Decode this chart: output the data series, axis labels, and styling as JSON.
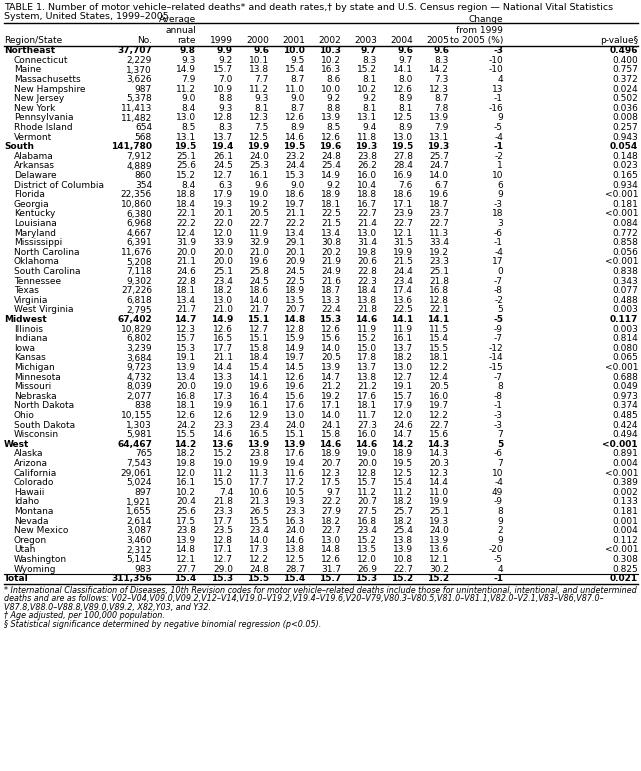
{
  "title_line1": "TABLE 1. Number of motor vehicle–related deaths* and death rates,† by state and U.S. Census region — National Vital Statistics",
  "title_line2": "System, United States, 1999–2005",
  "footnote1": "* International Classification of Diseases, 10th Revision codes for motor vehicle–related deaths include those for unintentional, intentional, and undetermined",
  "footnote1b": "deaths and are as follows: V02–V04,V09.0,V09.2,V12–V14,V19.0–V19.2,V19.4–V19.6,V20–V79,V80.3–V80.5,V81.0–V81.1,V82.0–V2.1,V83–V86,V87.0–",
  "footnote1c": "V87.8,V88.0–V88.8,V89.0,V89.2, X82,Y03, and Y32.",
  "footnote2": "† Age adjusted, per 100,000 population.",
  "footnote3": "§ Statistical significance determined by negative binomial regression (p<0.05).",
  "rows": [
    [
      "Northeast",
      "37,707",
      "9.8",
      "9.9",
      "9.6",
      "10.0",
      "10.3",
      "9.7",
      "9.6",
      "9.6",
      "-3",
      "0.496",
      "region"
    ],
    [
      "Connecticut",
      "2,229",
      "9.3",
      "9.2",
      "10.1",
      "9.5",
      "10.2",
      "8.3",
      "9.7",
      "8.3",
      "-10",
      "0.400",
      "state"
    ],
    [
      "Maine",
      "1,370",
      "14.9",
      "15.7",
      "13.8",
      "15.4",
      "16.3",
      "15.2",
      "14.1",
      "14.2",
      "-10",
      "0.757",
      "state"
    ],
    [
      "Massachusetts",
      "3,626",
      "7.9",
      "7.0",
      "7.7",
      "8.7",
      "8.6",
      "8.1",
      "8.0",
      "7.3",
      "4",
      "0.372",
      "state"
    ],
    [
      "New Hampshire",
      "987",
      "11.2",
      "10.9",
      "11.2",
      "11.0",
      "10.0",
      "10.2",
      "12.6",
      "12.3",
      "13",
      "0.024",
      "state"
    ],
    [
      "New Jersey",
      "5,378",
      "9.0",
      "8.8",
      "9.3",
      "9.0",
      "9.2",
      "9.2",
      "8.9",
      "8.7",
      "-1",
      "0.502",
      "state"
    ],
    [
      "New York",
      "11,413",
      "8.4",
      "9.3",
      "8.1",
      "8.7",
      "8.8",
      "8.1",
      "8.1",
      "7.8",
      "-16",
      "0.036",
      "state"
    ],
    [
      "Pennsylvania",
      "11,482",
      "13.0",
      "12.8",
      "12.3",
      "12.6",
      "13.9",
      "13.1",
      "12.5",
      "13.9",
      "9",
      "0.008",
      "state"
    ],
    [
      "Rhode Island",
      "654",
      "8.5",
      "8.3",
      "7.5",
      "8.9",
      "8.5",
      "9.4",
      "8.9",
      "7.9",
      "-5",
      "0.257",
      "state"
    ],
    [
      "Vermont",
      "568",
      "13.1",
      "13.7",
      "12.5",
      "14.6",
      "12.6",
      "11.8",
      "13.0",
      "13.1",
      "-4",
      "0.943",
      "state"
    ],
    [
      "South",
      "141,780",
      "19.5",
      "19.4",
      "19.9",
      "19.5",
      "19.6",
      "19.3",
      "19.5",
      "19.3",
      "-1",
      "0.054",
      "region"
    ],
    [
      "Alabama",
      "7,912",
      "25.1",
      "26.1",
      "24.0",
      "23.2",
      "24.8",
      "23.8",
      "27.8",
      "25.7",
      "-2",
      "0.148",
      "state"
    ],
    [
      "Arkansas",
      "4,889",
      "25.6",
      "24.5",
      "25.3",
      "24.4",
      "25.4",
      "26.2",
      "28.4",
      "24.7",
      "1",
      "0.023",
      "state"
    ],
    [
      "Delaware",
      "860",
      "15.2",
      "12.7",
      "16.1",
      "15.3",
      "14.9",
      "16.0",
      "16.9",
      "14.0",
      "10",
      "0.165",
      "state"
    ],
    [
      "District of Columbia",
      "354",
      "8.4",
      "6.3",
      "9.6",
      "9.0",
      "9.2",
      "10.4",
      "7.6",
      "6.7",
      "6",
      "0.934",
      "state"
    ],
    [
      "Florida",
      "22,356",
      "18.8",
      "17.9",
      "19.0",
      "18.6",
      "18.9",
      "18.8",
      "18.6",
      "19.6",
      "9",
      "<0.001",
      "state"
    ],
    [
      "Georgia",
      "10,860",
      "18.4",
      "19.3",
      "19.2",
      "19.7",
      "18.1",
      "16.7",
      "17.1",
      "18.7",
      "-3",
      "0.181",
      "state"
    ],
    [
      "Kentucky",
      "6,380",
      "22.1",
      "20.1",
      "20.5",
      "21.1",
      "22.5",
      "22.7",
      "23.9",
      "23.7",
      "18",
      "<0.001",
      "state"
    ],
    [
      "Louisiana",
      "6,968",
      "22.2",
      "22.0",
      "22.7",
      "22.2",
      "21.5",
      "21.4",
      "22.7",
      "22.7",
      "3",
      "0.084",
      "state"
    ],
    [
      "Maryland",
      "4,667",
      "12.4",
      "12.0",
      "11.9",
      "13.4",
      "13.4",
      "13.0",
      "12.1",
      "11.3",
      "-6",
      "0.772",
      "state"
    ],
    [
      "Mississippi",
      "6,391",
      "31.9",
      "33.9",
      "32.9",
      "29.1",
      "30.8",
      "31.4",
      "31.5",
      "33.4",
      "-1",
      "0.858",
      "state"
    ],
    [
      "North Carolina",
      "11,676",
      "20.0",
      "20.0",
      "21.0",
      "20.1",
      "20.2",
      "19.8",
      "19.9",
      "19.2",
      "-4",
      "0.056",
      "state"
    ],
    [
      "Oklahoma",
      "5,208",
      "21.1",
      "20.0",
      "19.6",
      "20.9",
      "21.9",
      "20.6",
      "21.5",
      "23.3",
      "17",
      "<0.001",
      "state"
    ],
    [
      "South Carolina",
      "7,118",
      "24.6",
      "25.1",
      "25.8",
      "24.5",
      "24.9",
      "22.8",
      "24.4",
      "25.1",
      "0",
      "0.838",
      "state"
    ],
    [
      "Tennessee",
      "9,302",
      "22.8",
      "23.4",
      "24.5",
      "22.5",
      "21.6",
      "22.3",
      "23.4",
      "21.8",
      "-7",
      "0.343",
      "state"
    ],
    [
      "Texas",
      "27,226",
      "18.1",
      "18.2",
      "18.6",
      "18.9",
      "18.7",
      "18.4",
      "17.4",
      "16.8",
      "-8",
      "0.077",
      "state"
    ],
    [
      "Virginia",
      "6,818",
      "13.4",
      "13.0",
      "14.0",
      "13.5",
      "13.3",
      "13.8",
      "13.6",
      "12.8",
      "-2",
      "0.488",
      "state"
    ],
    [
      "West Virginia",
      "2,795",
      "21.7",
      "21.0",
      "21.7",
      "20.7",
      "22.4",
      "21.8",
      "22.5",
      "22.1",
      "5",
      "0.003",
      "state"
    ],
    [
      "Midwest",
      "67,402",
      "14.7",
      "14.9",
      "15.1",
      "14.8",
      "15.3",
      "14.6",
      "14.1",
      "14.1",
      "-5",
      "0.117",
      "region"
    ],
    [
      "Illinois",
      "10,829",
      "12.3",
      "12.6",
      "12.7",
      "12.8",
      "12.6",
      "11.9",
      "11.9",
      "11.5",
      "-9",
      "0.003",
      "state"
    ],
    [
      "Indiana",
      "6,802",
      "15.7",
      "16.5",
      "15.1",
      "15.9",
      "15.6",
      "15.2",
      "16.1",
      "15.4",
      "-7",
      "0.814",
      "state"
    ],
    [
      "Iowa",
      "3,239",
      "15.3",
      "17.7",
      "15.8",
      "14.9",
      "14.0",
      "15.0",
      "13.7",
      "15.5",
      "-12",
      "0.080",
      "state"
    ],
    [
      "Kansas",
      "3,684",
      "19.1",
      "21.1",
      "18.4",
      "19.7",
      "20.5",
      "17.8",
      "18.2",
      "18.1",
      "-14",
      "0.065",
      "state"
    ],
    [
      "Michigan",
      "9,723",
      "13.9",
      "14.4",
      "15.4",
      "14.5",
      "13.9",
      "13.7",
      "13.0",
      "12.2",
      "-15",
      "<0.001",
      "state"
    ],
    [
      "Minnesota",
      "4,732",
      "13.4",
      "13.3",
      "14.1",
      "12.6",
      "14.7",
      "13.8",
      "12.7",
      "12.4",
      "-7",
      "0.688",
      "state"
    ],
    [
      "Missouri",
      "8,039",
      "20.0",
      "19.0",
      "19.6",
      "19.6",
      "21.2",
      "21.2",
      "19.1",
      "20.5",
      "8",
      "0.049",
      "state"
    ],
    [
      "Nebraska",
      "2,077",
      "16.8",
      "17.3",
      "16.4",
      "15.6",
      "19.2",
      "17.6",
      "15.7",
      "16.0",
      "-8",
      "0.973",
      "state"
    ],
    [
      "North Dakota",
      "838",
      "18.1",
      "19.9",
      "16.1",
      "17.6",
      "17.1",
      "18.1",
      "17.9",
      "19.7",
      "-1",
      "0.374",
      "state"
    ],
    [
      "Ohio",
      "10,155",
      "12.6",
      "12.6",
      "12.9",
      "13.0",
      "14.0",
      "11.7",
      "12.0",
      "12.2",
      "-3",
      "0.485",
      "state"
    ],
    [
      "South Dakota",
      "1,303",
      "24.2",
      "23.3",
      "23.4",
      "24.0",
      "24.1",
      "27.3",
      "24.6",
      "22.7",
      "-3",
      "0.424",
      "state"
    ],
    [
      "Wisconsin",
      "5,981",
      "15.5",
      "14.6",
      "16.5",
      "15.1",
      "15.8",
      "16.0",
      "14.7",
      "15.6",
      "7",
      "0.494",
      "state"
    ],
    [
      "West",
      "64,467",
      "14.2",
      "13.6",
      "13.9",
      "13.9",
      "14.6",
      "14.6",
      "14.2",
      "14.3",
      "5",
      "<0.001",
      "region"
    ],
    [
      "Alaska",
      "765",
      "18.2",
      "15.2",
      "23.8",
      "17.6",
      "18.9",
      "19.0",
      "18.9",
      "14.3",
      "-6",
      "0.891",
      "state"
    ],
    [
      "Arizona",
      "7,543",
      "19.8",
      "19.0",
      "19.9",
      "19.4",
      "20.7",
      "20.0",
      "19.5",
      "20.3",
      "7",
      "0.004",
      "state"
    ],
    [
      "California",
      "29,061",
      "12.0",
      "11.2",
      "11.3",
      "11.6",
      "12.3",
      "12.8",
      "12.5",
      "12.3",
      "10",
      "<0.001",
      "state"
    ],
    [
      "Colorado",
      "5,024",
      "16.1",
      "15.0",
      "17.7",
      "17.2",
      "17.5",
      "15.7",
      "15.4",
      "14.4",
      "-4",
      "0.389",
      "state"
    ],
    [
      "Hawaii",
      "897",
      "10.2",
      "7.4",
      "10.6",
      "10.5",
      "9.7",
      "11.2",
      "11.2",
      "11.0",
      "49",
      "0.002",
      "state"
    ],
    [
      "Idaho",
      "1,921",
      "20.4",
      "21.8",
      "21.3",
      "19.3",
      "22.2",
      "20.7",
      "18.2",
      "19.9",
      "-9",
      "0.133",
      "state"
    ],
    [
      "Montana",
      "1,655",
      "25.6",
      "23.3",
      "26.5",
      "23.3",
      "27.9",
      "27.5",
      "25.7",
      "25.1",
      "8",
      "0.181",
      "state"
    ],
    [
      "Nevada",
      "2,614",
      "17.5",
      "17.7",
      "15.5",
      "16.3",
      "18.2",
      "16.8",
      "18.2",
      "19.3",
      "9",
      "0.001",
      "state"
    ],
    [
      "New Mexico",
      "3,087",
      "23.8",
      "23.5",
      "23.4",
      "24.0",
      "22.7",
      "23.4",
      "25.4",
      "24.0",
      "2",
      "0.004",
      "state"
    ],
    [
      "Oregon",
      "3,460",
      "13.9",
      "12.8",
      "14.0",
      "14.6",
      "13.0",
      "15.2",
      "13.8",
      "13.9",
      "9",
      "0.112",
      "state"
    ],
    [
      "Utah",
      "2,312",
      "14.8",
      "17.1",
      "17.3",
      "13.8",
      "14.8",
      "13.5",
      "13.9",
      "13.6",
      "-20",
      "<0.001",
      "state"
    ],
    [
      "Washington",
      "5,145",
      "12.1",
      "12.7",
      "12.2",
      "12.5",
      "12.6",
      "12.0",
      "10.8",
      "12.1",
      "-5",
      "0.308",
      "state"
    ],
    [
      "Wyoming",
      "983",
      "27.7",
      "29.0",
      "24.8",
      "28.7",
      "31.7",
      "26.9",
      "22.7",
      "30.2",
      "4",
      "0.825",
      "state"
    ],
    [
      "Total",
      "311,356",
      "15.4",
      "15.3",
      "15.5",
      "15.4",
      "15.7",
      "15.3",
      "15.2",
      "15.2",
      "-1",
      "0.021",
      "total"
    ]
  ]
}
